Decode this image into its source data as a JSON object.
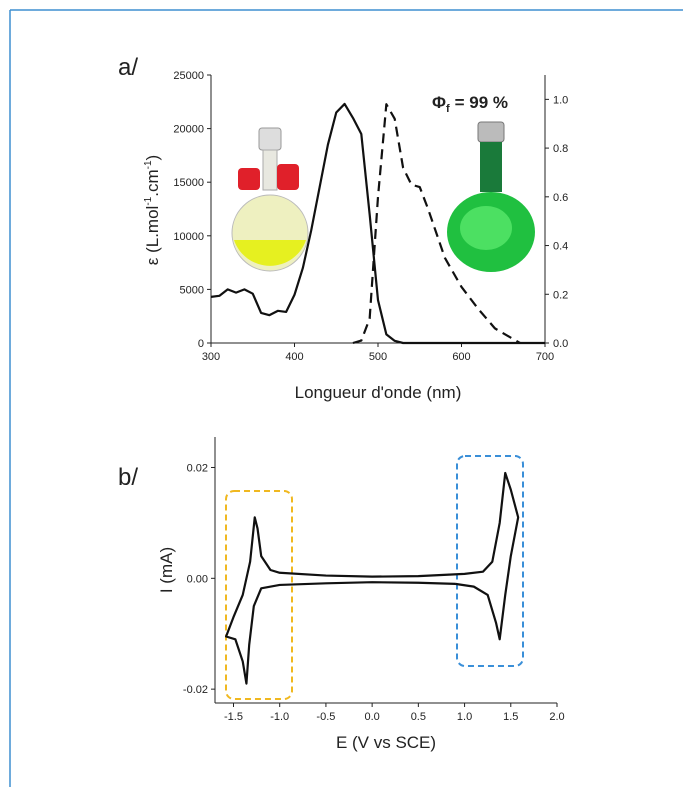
{
  "chart_data": [
    {
      "type": "line",
      "panel_label": "a/",
      "x_label": "Longueur d'onde (nm)",
      "y_label": {
        "parts": [
          "ε (L.mol",
          "-1",
          ".cm",
          "-1",
          ")"
        ]
      },
      "annotation": {
        "symbol": "Φ",
        "subscript": "f",
        "text": "= 99 %"
      },
      "xlim": [
        300,
        700
      ],
      "xticks": [
        300,
        400,
        500,
        600,
        700
      ],
      "ylim": [
        0,
        25000
      ],
      "yticks": [
        0,
        5000,
        10000,
        15000,
        20000,
        25000
      ],
      "y2lim": [
        0,
        1.1
      ],
      "y2ticks": [
        {
          "value": 0,
          "label": "0.0"
        },
        0.2,
        0.4,
        0.6,
        0.8,
        {
          "value": 1,
          "label": "1.0"
        }
      ],
      "series": [
        {
          "color": "#111111",
          "line_style": "solid",
          "x": [
            300,
            310,
            320,
            330,
            340,
            350,
            360,
            370,
            380,
            390,
            400,
            410,
            420,
            430,
            440,
            450,
            460,
            470,
            480,
            490,
            500,
            510,
            520,
            530,
            550,
            600,
            650,
            700
          ],
          "values": [
            4300,
            4400,
            5000,
            4700,
            5000,
            4600,
            2800,
            2600,
            3000,
            2900,
            4500,
            7000,
            10500,
            14500,
            18500,
            21500,
            22300,
            21000,
            19500,
            12000,
            4000,
            800,
            200,
            0,
            0,
            0,
            0,
            0
          ]
        },
        {
          "color": "#111111",
          "line_style": "dashed",
          "axis": "y2",
          "x": [
            470,
            480,
            490,
            500,
            510,
            520,
            530,
            540,
            550,
            560,
            570,
            580,
            600,
            620,
            640,
            660,
            670
          ],
          "values": [
            0,
            0.01,
            0.1,
            0.6,
            0.98,
            0.92,
            0.72,
            0.65,
            0.64,
            0.55,
            0.45,
            0.35,
            0.23,
            0.14,
            0.06,
            0.02,
            0
          ]
        }
      ]
    },
    {
      "type": "line",
      "panel_label": "b/",
      "x_label": "E (V vs SCE)",
      "y_label": {
        "parts": [
          "I (mA)"
        ]
      },
      "xlim": [
        -1.7,
        2.0
      ],
      "xticks": [
        -1.5,
        {
          "value": -1,
          "label": "-1.0"
        },
        -0.5,
        {
          "value": 0,
          "label": "0.0"
        },
        0.5,
        {
          "value": 1,
          "label": "1.0"
        },
        1.5,
        {
          "value": 2,
          "label": "2.0"
        }
      ],
      "ylim": [
        -0.0225,
        0.0255
      ],
      "yticks": [
        -0.02,
        {
          "value": 0,
          "label": "0.00"
        },
        0.02
      ],
      "series": [
        {
          "color": "#111111",
          "line_style": "solid",
          "x": [
            0.9,
            0.5,
            0,
            -0.5,
            -1.0,
            -1.2,
            -1.28,
            -1.33,
            -1.36,
            -1.4,
            -1.48,
            -1.58,
            -1.5,
            -1.4,
            -1.32,
            -1.27,
            -1.24,
            -1.2,
            -1.1,
            -1.0,
            -0.5,
            0,
            0.5,
            1.0,
            1.2,
            1.3,
            1.38,
            1.44,
            1.5,
            1.58,
            1.5,
            1.44,
            1.38,
            1.34,
            1.25,
            1.1,
            0.9
          ],
          "values": [
            -0.001,
            -0.0008,
            -0.0007,
            -0.0009,
            -0.0012,
            -0.0018,
            -0.005,
            -0.012,
            -0.019,
            -0.015,
            -0.011,
            -0.0105,
            -0.007,
            -0.003,
            0.003,
            0.011,
            0.009,
            0.004,
            0.0015,
            0.001,
            0.0005,
            0.0003,
            0.0004,
            0.0008,
            0.0012,
            0.003,
            0.01,
            0.019,
            0.016,
            0.011,
            0.004,
            -0.003,
            -0.011,
            -0.008,
            -0.003,
            -0.0015,
            -0.001
          ]
        }
      ]
    }
  ]
}
